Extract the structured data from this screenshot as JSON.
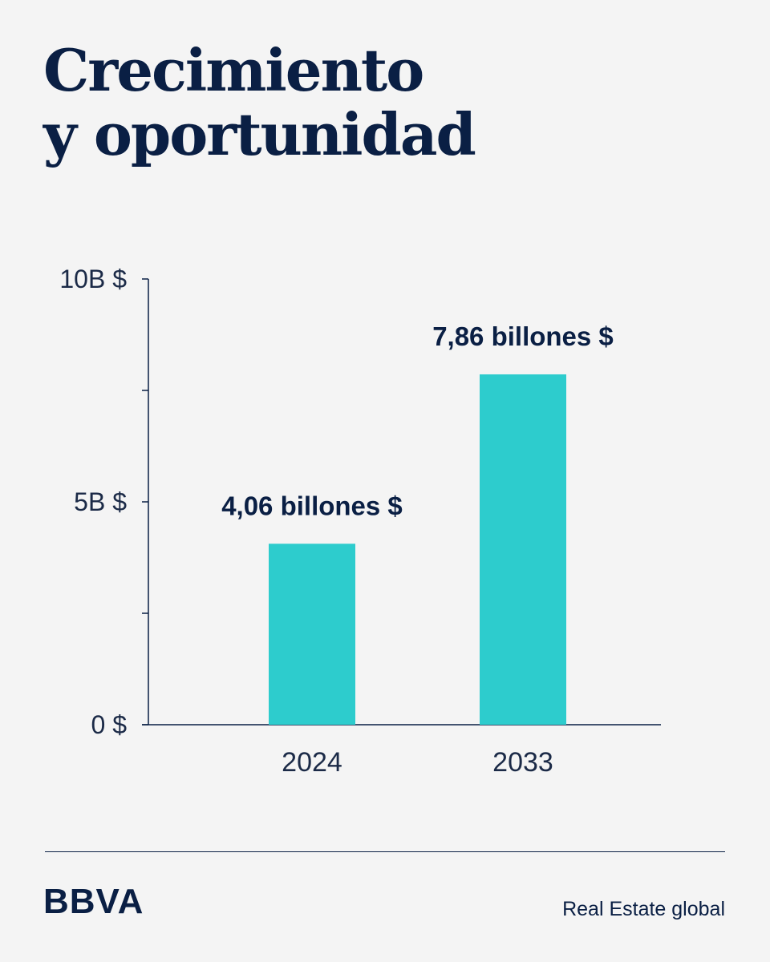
{
  "title": {
    "line1": "Crecimiento",
    "line2": "y oportunidad"
  },
  "chart_data": {
    "type": "bar",
    "categories": [
      "2024",
      "2033"
    ],
    "values": [
      4.06,
      7.86
    ],
    "data_labels": [
      "4,06 billones $",
      "7,86 billones $"
    ],
    "ylim": [
      0,
      10
    ],
    "y_ticks": [
      0,
      2.5,
      5,
      7.5,
      10
    ],
    "y_tick_labels": [
      {
        "value": 0,
        "label": "0 $"
      },
      {
        "value": 5,
        "label": "5B $"
      },
      {
        "value": 10,
        "label": "10B $"
      }
    ],
    "bar_color": "#2dcccd",
    "axis_color": "#0a1f44",
    "grid": false,
    "legend": "none"
  },
  "footer": {
    "logo": "BBVA",
    "tagline": "Real Estate global"
  }
}
